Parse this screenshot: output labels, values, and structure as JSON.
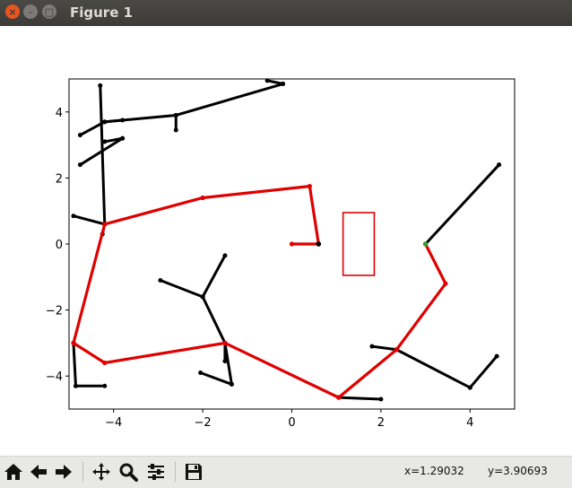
{
  "window": {
    "title": "Figure 1",
    "close_glyph": "×",
    "min_glyph": "–",
    "max_glyph": "□"
  },
  "toolbar": {
    "buttons": [
      {
        "name": "home-icon",
        "label": "Home"
      },
      {
        "name": "back-icon",
        "label": "Back"
      },
      {
        "name": "forward-icon",
        "label": "Forward"
      },
      {
        "name": "pan-icon",
        "label": "Pan"
      },
      {
        "name": "zoom-icon",
        "label": "Zoom"
      },
      {
        "name": "configure-subplots-icon",
        "label": "Configure subplots"
      },
      {
        "name": "save-icon",
        "label": "Save"
      }
    ],
    "x_readout": "x=1.29032",
    "y_readout": "y=3.90693"
  },
  "chart_data": {
    "type": "line",
    "title": "",
    "xlabel": "",
    "ylabel": "",
    "xlim": [
      -5,
      5
    ],
    "ylim": [
      -5,
      5
    ],
    "xticks": [
      -4,
      -2,
      0,
      2,
      4
    ],
    "yticks": [
      -4,
      -2,
      0,
      2,
      4
    ],
    "xtick_labels": [
      "−4",
      "−2",
      "0",
      "2",
      "4"
    ],
    "ytick_labels": [
      "−4",
      "−2",
      "0",
      "2",
      "4"
    ],
    "grid": false,
    "colors": {
      "tree": "#000000",
      "path": "#e00000",
      "obstacle": "#e00000",
      "goal_marker": "#2ca02c"
    },
    "tree_edges": [
      [
        [
          -4.3,
          4.8
        ],
        [
          -4.2,
          0.6
        ]
      ],
      [
        [
          -4.2,
          3.7
        ],
        [
          -4.75,
          3.3
        ]
      ],
      [
        [
          -4.2,
          3.7
        ],
        [
          -3.8,
          3.75
        ]
      ],
      [
        [
          -4.2,
          3.7
        ],
        [
          -2.6,
          3.9
        ]
      ],
      [
        [
          -2.6,
          3.9
        ],
        [
          -2.6,
          3.45
        ]
      ],
      [
        [
          -2.6,
          3.9
        ],
        [
          -0.2,
          4.85
        ]
      ],
      [
        [
          -0.2,
          4.85
        ],
        [
          -0.55,
          4.95
        ]
      ],
      [
        [
          -4.75,
          2.4
        ],
        [
          -3.8,
          3.2
        ]
      ],
      [
        [
          -4.2,
          3.1
        ],
        [
          -3.8,
          3.2
        ]
      ],
      [
        [
          -4.2,
          0.6
        ],
        [
          -4.9,
          0.85
        ]
      ],
      [
        [
          -4.2,
          0.6
        ],
        [
          -4.25,
          0.3
        ]
      ],
      [
        [
          -4.9,
          -3.0
        ],
        [
          -4.85,
          -4.3
        ]
      ],
      [
        [
          -4.85,
          -4.3
        ],
        [
          -4.2,
          -4.3
        ]
      ],
      [
        [
          -1.5,
          -3.0
        ],
        [
          -1.35,
          -4.25
        ]
      ],
      [
        [
          -1.5,
          -3.0
        ],
        [
          -1.5,
          -3.55
        ]
      ],
      [
        [
          -2.05,
          -3.9
        ],
        [
          -1.35,
          -4.25
        ]
      ],
      [
        [
          -2.0,
          -1.6
        ],
        [
          -1.5,
          -0.35
        ]
      ],
      [
        [
          -2.0,
          -1.6
        ],
        [
          -2.95,
          -1.1
        ]
      ],
      [
        [
          -2.0,
          -1.6
        ],
        [
          -1.5,
          -3.0
        ]
      ],
      [
        [
          1.05,
          -4.65
        ],
        [
          2.0,
          -4.7
        ]
      ],
      [
        [
          2.35,
          -3.2
        ],
        [
          1.8,
          -3.1
        ]
      ],
      [
        [
          2.35,
          -3.2
        ],
        [
          4.0,
          -4.35
        ]
      ],
      [
        [
          4.0,
          -4.35
        ],
        [
          4.6,
          -3.4
        ]
      ],
      [
        [
          3.0,
          0.0
        ],
        [
          4.65,
          2.4
        ]
      ]
    ],
    "path": [
      [
        0.0,
        0.0
      ],
      [
        0.6,
        0.0
      ],
      [
        0.4,
        1.75
      ],
      [
        -2.0,
        1.4
      ],
      [
        -4.2,
        0.6
      ],
      [
        -4.9,
        -3.0
      ],
      [
        -4.2,
        -3.6
      ],
      [
        -1.5,
        -3.0
      ],
      [
        1.05,
        -4.65
      ],
      [
        2.35,
        -3.2
      ],
      [
        3.45,
        -1.2
      ],
      [
        3.0,
        0.0
      ]
    ],
    "obstacle": {
      "x0": 1.15,
      "x1": 1.85,
      "y0": -0.95,
      "y1": 0.95
    },
    "start": [
      0.6,
      0.0
    ],
    "goal": [
      3.0,
      0.0
    ]
  }
}
